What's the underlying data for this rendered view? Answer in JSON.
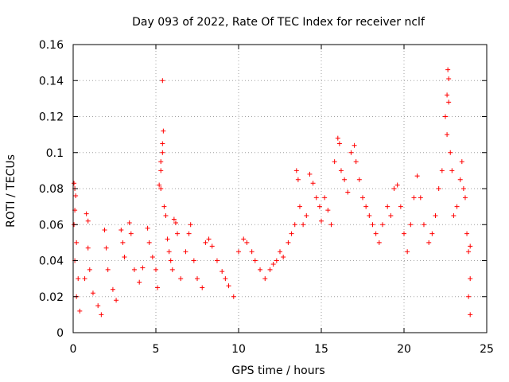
{
  "chart_data": {
    "type": "scatter",
    "title": "Day 093 of 2022, Rate Of TEC Index for receiver nclf",
    "xlabel": "GPS time / hours",
    "ylabel": "ROTI / TECUs",
    "xlim": [
      0,
      25
    ],
    "ylim": [
      0,
      0.16
    ],
    "xticks": [
      0,
      5,
      10,
      15,
      20,
      25
    ],
    "xtick_labels": [
      "0",
      "5",
      "10",
      "15",
      "20",
      "25"
    ],
    "yticks": [
      0,
      0.02,
      0.04,
      0.06,
      0.08,
      0.1,
      0.12,
      0.14,
      0.16
    ],
    "ytick_labels": [
      "0",
      "0.02",
      "0.04",
      "0.06",
      "0.08",
      "0.1",
      "0.12",
      "0.14",
      "0.16"
    ],
    "grid": true,
    "legend": "none",
    "marker": "plus",
    "point_color": "#ff0000",
    "series": [
      {
        "points": [
          [
            0.05,
            0.083
          ],
          [
            0.1,
            0.08
          ],
          [
            0.15,
            0.076
          ],
          [
            0.1,
            0.068
          ],
          [
            0.05,
            0.06
          ],
          [
            0.2,
            0.05
          ],
          [
            0.1,
            0.04
          ],
          [
            0.3,
            0.03
          ],
          [
            0.2,
            0.02
          ],
          [
            0.4,
            0.012
          ],
          [
            0.8,
            0.066
          ],
          [
            0.9,
            0.062
          ],
          [
            0.9,
            0.047
          ],
          [
            1.0,
            0.035
          ],
          [
            0.7,
            0.03
          ],
          [
            1.2,
            0.022
          ],
          [
            1.5,
            0.015
          ],
          [
            1.7,
            0.01
          ],
          [
            1.9,
            0.057
          ],
          [
            2.0,
            0.047
          ],
          [
            2.1,
            0.035
          ],
          [
            2.4,
            0.024
          ],
          [
            2.6,
            0.018
          ],
          [
            2.9,
            0.057
          ],
          [
            3.0,
            0.05
          ],
          [
            3.1,
            0.042
          ],
          [
            3.4,
            0.061
          ],
          [
            3.5,
            0.055
          ],
          [
            3.7,
            0.035
          ],
          [
            4.0,
            0.028
          ],
          [
            4.2,
            0.036
          ],
          [
            4.5,
            0.058
          ],
          [
            4.6,
            0.05
          ],
          [
            4.8,
            0.042
          ],
          [
            5.0,
            0.035
          ],
          [
            5.1,
            0.025
          ],
          [
            5.2,
            0.082
          ],
          [
            5.3,
            0.08
          ],
          [
            5.3,
            0.09
          ],
          [
            5.3,
            0.095
          ],
          [
            5.4,
            0.1
          ],
          [
            5.4,
            0.105
          ],
          [
            5.45,
            0.112
          ],
          [
            5.4,
            0.14
          ],
          [
            5.5,
            0.07
          ],
          [
            5.6,
            0.065
          ],
          [
            5.7,
            0.052
          ],
          [
            5.8,
            0.045
          ],
          [
            5.9,
            0.04
          ],
          [
            6.0,
            0.035
          ],
          [
            6.1,
            0.063
          ],
          [
            6.2,
            0.061
          ],
          [
            6.3,
            0.055
          ],
          [
            6.5,
            0.03
          ],
          [
            6.8,
            0.045
          ],
          [
            7.0,
            0.055
          ],
          [
            7.1,
            0.06
          ],
          [
            7.3,
            0.04
          ],
          [
            7.5,
            0.03
          ],
          [
            7.8,
            0.025
          ],
          [
            8.0,
            0.05
          ],
          [
            8.2,
            0.052
          ],
          [
            8.4,
            0.048
          ],
          [
            8.7,
            0.04
          ],
          [
            9.0,
            0.034
          ],
          [
            9.2,
            0.03
          ],
          [
            9.4,
            0.026
          ],
          [
            9.7,
            0.02
          ],
          [
            10.0,
            0.045
          ],
          [
            10.3,
            0.052
          ],
          [
            10.5,
            0.05
          ],
          [
            10.8,
            0.045
          ],
          [
            11.0,
            0.04
          ],
          [
            11.3,
            0.035
          ],
          [
            11.6,
            0.03
          ],
          [
            11.9,
            0.035
          ],
          [
            12.1,
            0.038
          ],
          [
            12.3,
            0.04
          ],
          [
            12.5,
            0.045
          ],
          [
            12.7,
            0.042
          ],
          [
            13.0,
            0.05
          ],
          [
            13.2,
            0.055
          ],
          [
            13.4,
            0.06
          ],
          [
            13.5,
            0.09
          ],
          [
            13.6,
            0.085
          ],
          [
            13.7,
            0.07
          ],
          [
            13.9,
            0.06
          ],
          [
            14.1,
            0.065
          ],
          [
            14.3,
            0.088
          ],
          [
            14.5,
            0.083
          ],
          [
            14.7,
            0.075
          ],
          [
            14.9,
            0.07
          ],
          [
            15.0,
            0.062
          ],
          [
            15.2,
            0.075
          ],
          [
            15.4,
            0.068
          ],
          [
            15.6,
            0.06
          ],
          [
            15.8,
            0.095
          ],
          [
            16.0,
            0.108
          ],
          [
            16.1,
            0.105
          ],
          [
            16.2,
            0.09
          ],
          [
            16.4,
            0.085
          ],
          [
            16.6,
            0.078
          ],
          [
            16.8,
            0.1
          ],
          [
            17.0,
            0.104
          ],
          [
            17.1,
            0.095
          ],
          [
            17.3,
            0.085
          ],
          [
            17.5,
            0.075
          ],
          [
            17.7,
            0.07
          ],
          [
            17.9,
            0.065
          ],
          [
            18.1,
            0.06
          ],
          [
            18.3,
            0.055
          ],
          [
            18.5,
            0.05
          ],
          [
            18.7,
            0.06
          ],
          [
            19.0,
            0.07
          ],
          [
            19.2,
            0.065
          ],
          [
            19.4,
            0.08
          ],
          [
            19.6,
            0.082
          ],
          [
            19.8,
            0.07
          ],
          [
            20.0,
            0.055
          ],
          [
            20.2,
            0.045
          ],
          [
            20.4,
            0.06
          ],
          [
            20.6,
            0.075
          ],
          [
            20.8,
            0.087
          ],
          [
            21.0,
            0.075
          ],
          [
            21.2,
            0.06
          ],
          [
            21.5,
            0.05
          ],
          [
            21.7,
            0.055
          ],
          [
            21.9,
            0.065
          ],
          [
            22.1,
            0.08
          ],
          [
            22.3,
            0.09
          ],
          [
            22.5,
            0.12
          ],
          [
            22.6,
            0.132
          ],
          [
            22.65,
            0.146
          ],
          [
            22.7,
            0.141
          ],
          [
            22.7,
            0.128
          ],
          [
            22.6,
            0.11
          ],
          [
            22.8,
            0.1
          ],
          [
            22.9,
            0.09
          ],
          [
            23.0,
            0.065
          ],
          [
            23.2,
            0.07
          ],
          [
            23.4,
            0.085
          ],
          [
            23.5,
            0.095
          ],
          [
            23.6,
            0.08
          ],
          [
            23.7,
            0.075
          ],
          [
            23.8,
            0.055
          ],
          [
            23.9,
            0.045
          ],
          [
            24.0,
            0.048
          ],
          [
            24.0,
            0.03
          ],
          [
            23.9,
            0.02
          ],
          [
            24.0,
            0.01
          ]
        ]
      }
    ]
  }
}
